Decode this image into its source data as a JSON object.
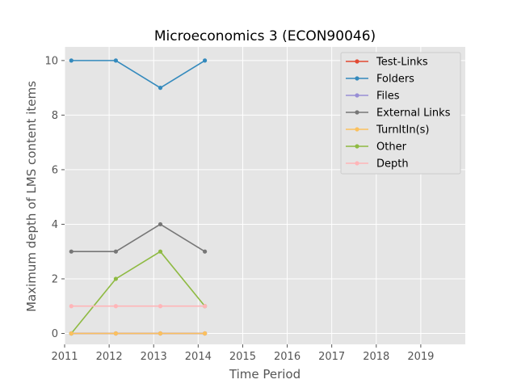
{
  "chart_data": {
    "type": "line",
    "title": "Microeconomics 3 (ECON90046)",
    "xlabel": "Time Period",
    "ylabel": "Maximum depth of LMS content items",
    "xlim": [
      2011,
      2020
    ],
    "ylim": [
      -0.4,
      10.5
    ],
    "x_ticks": [
      "2011",
      "2012",
      "2013",
      "2014",
      "2015",
      "2016",
      "2017",
      "2018",
      "2019"
    ],
    "y_ticks": [
      "0",
      "2",
      "4",
      "6",
      "8",
      "10"
    ],
    "grid": true,
    "legend_position": "top-right",
    "x": [
      2011.15,
      2012.15,
      2013.15,
      2014.15
    ],
    "series": [
      {
        "name": "Test-Links",
        "color": "#E24A33",
        "values": [
          0,
          0,
          0,
          0
        ]
      },
      {
        "name": "Folders",
        "color": "#348ABD",
        "values": [
          10,
          10,
          9,
          10
        ]
      },
      {
        "name": "Files",
        "color": "#988ED5",
        "values": [
          0,
          0,
          0,
          0
        ]
      },
      {
        "name": "External Links",
        "color": "#777777",
        "values": [
          3,
          3,
          4,
          3
        ]
      },
      {
        "name": "TurnItIn(s)",
        "color": "#FBC15E",
        "values": [
          0,
          0,
          0,
          0
        ]
      },
      {
        "name": "Other",
        "color": "#8EBA42",
        "values": [
          0,
          2,
          3,
          1
        ]
      },
      {
        "name": "Depth",
        "color": "#FFB5B8",
        "values": [
          1,
          1,
          1,
          1
        ]
      }
    ],
    "draw_order": [
      0,
      1,
      2,
      3,
      5,
      6,
      4
    ]
  }
}
